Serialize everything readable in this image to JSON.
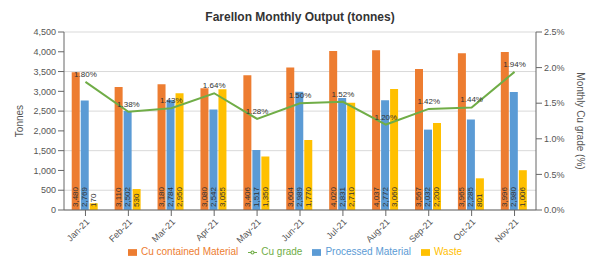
{
  "chart_data": {
    "type": "bar",
    "title": "Farellon Monthly Output (tonnes)",
    "y_label": "Tonnes",
    "y2_label": "Monthly Cu grade (%)",
    "categories": [
      "Jan-21",
      "Feb-21",
      "Mar-21",
      "Apr-21",
      "May-21",
      "Jun-21",
      "Jul-21",
      "Aug-21",
      "Sep-21",
      "Oct-21",
      "Nov-21"
    ],
    "series": [
      {
        "name": "Cu contained Material",
        "type": "bar",
        "color": "#ED7D31",
        "values": [
          3480,
          3110,
          3180,
          3080,
          3406,
          3604,
          4020,
          4037,
          3567,
          3965,
          3996
        ],
        "value_labels": [
          "3,480",
          "3,110",
          "3,180",
          "3,080",
          "3,406",
          "3,604",
          "4,020",
          "4,037",
          "3,567",
          "3,965",
          "3,996"
        ]
      },
      {
        "name": "Processed Material",
        "type": "bar",
        "color": "#5B9BD5",
        "values": [
          2769,
          2502,
          2784,
          2542,
          1517,
          2989,
          2831,
          2772,
          2032,
          2285,
          2980
        ],
        "value_labels": [
          "2,769",
          "2,502",
          "2,784",
          "2,542",
          "1,517",
          "2,989",
          "2,831",
          "2,772",
          "2,032",
          "2,285",
          "2,980"
        ]
      },
      {
        "name": "Waste",
        "type": "bar",
        "color": "#FFC000",
        "values": [
          170,
          530,
          2950,
          3055,
          1350,
          1770,
          2710,
          3060,
          2200,
          801,
          1006
        ],
        "value_labels": [
          "170",
          "530",
          "2,950",
          "3,055",
          "1,350",
          "1,770",
          "2,710",
          "3,060",
          "2,200",
          "801",
          "1,006"
        ]
      },
      {
        "name": "Cu grade",
        "type": "line",
        "axis": "y2",
        "color": "#70AD47",
        "values": [
          1.8,
          1.38,
          1.43,
          1.64,
          1.28,
          1.5,
          1.52,
          1.2,
          1.42,
          1.44,
          1.94
        ],
        "value_labels": [
          "1.80%",
          "1.38%",
          "1.43%",
          "1.64%",
          "1.28%",
          "1.50%",
          "1.52%",
          "1.20%",
          "1.42%",
          "1.44%",
          "1.94%"
        ]
      }
    ],
    "ylim": [
      0,
      4500
    ],
    "yticks": [
      0,
      500,
      {
        "value": 1000,
        "label": "1,000"
      },
      {
        "value": 1500,
        "label": "1,500"
      },
      {
        "value": 2000,
        "label": "2,000"
      },
      {
        "value": 2500,
        "label": "2,500"
      },
      {
        "value": 3000,
        "label": "3,000"
      },
      {
        "value": 3500,
        "label": "3,500"
      },
      {
        "value": 4000,
        "label": "4,000"
      },
      {
        "value": 4500,
        "label": "4,500"
      }
    ],
    "y2lim": [
      0,
      2.5
    ],
    "y2ticks": [
      {
        "value": 0,
        "label": "0.0%"
      },
      {
        "value": 0.5,
        "label": "0.5%"
      },
      {
        "value": 1,
        "label": "1.0%"
      },
      {
        "value": 1.5,
        "label": "1.5%"
      },
      {
        "value": 2,
        "label": "2.0%"
      },
      {
        "value": 2.5,
        "label": "2.5%"
      }
    ],
    "grid": true,
    "legend": "bottom",
    "data_labels": true
  }
}
